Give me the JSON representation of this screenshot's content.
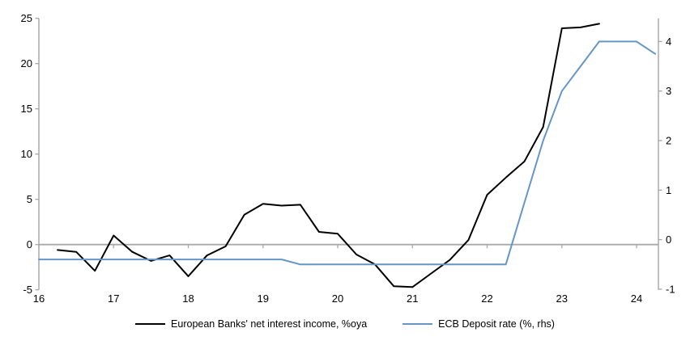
{
  "chart_data": {
    "type": "line",
    "title": "",
    "x_axis": {
      "labels": [
        "16",
        "17",
        "18",
        "19",
        "20",
        "21",
        "22",
        "23",
        "24"
      ],
      "tick_years": [
        16,
        17,
        18,
        19,
        20,
        21,
        22,
        23,
        24
      ],
      "range": [
        16,
        24.29
      ]
    },
    "left_axis": {
      "ticks": [
        -5,
        0,
        5,
        10,
        15,
        20,
        25
      ],
      "range": [
        -5,
        25
      ]
    },
    "right_axis": {
      "ticks": [
        -1,
        0,
        1,
        2,
        3,
        4
      ],
      "range": [
        -1.02,
        4.47
      ]
    },
    "grid": "zero-line-only",
    "legend_position": "bottom-center",
    "series": [
      {
        "name": "European Banks' net interest income, %oya",
        "color": "#000000",
        "axis": "left",
        "points": [
          [
            16.25,
            -0.6
          ],
          [
            16.5,
            -0.8
          ],
          [
            16.75,
            -2.9
          ],
          [
            17.0,
            1.0
          ],
          [
            17.25,
            -0.8
          ],
          [
            17.5,
            -1.8
          ],
          [
            17.75,
            -1.2
          ],
          [
            18.0,
            -3.5
          ],
          [
            18.25,
            -1.2
          ],
          [
            18.5,
            -0.2
          ],
          [
            18.75,
            3.3
          ],
          [
            19.0,
            4.5
          ],
          [
            19.25,
            4.3
          ],
          [
            19.5,
            4.4
          ],
          [
            19.75,
            1.4
          ],
          [
            20.0,
            1.2
          ],
          [
            20.25,
            -1.1
          ],
          [
            20.5,
            -2.2
          ],
          [
            20.75,
            -4.6
          ],
          [
            21.0,
            -4.7
          ],
          [
            21.25,
            -3.2
          ],
          [
            21.5,
            -1.7
          ],
          [
            21.75,
            0.5
          ],
          [
            22.0,
            5.5
          ],
          [
            22.25,
            7.4
          ],
          [
            22.5,
            9.2
          ],
          [
            22.75,
            13.0
          ],
          [
            23.0,
            23.9
          ],
          [
            23.25,
            24.0
          ],
          [
            23.5,
            24.4
          ]
        ]
      },
      {
        "name": "ECB Deposit rate (%, rhs)",
        "color": "#6496C8",
        "axis": "right",
        "points": [
          [
            16.0,
            -0.4
          ],
          [
            16.25,
            -0.4
          ],
          [
            16.5,
            -0.4
          ],
          [
            16.75,
            -0.4
          ],
          [
            17.0,
            -0.4
          ],
          [
            17.25,
            -0.4
          ],
          [
            17.5,
            -0.4
          ],
          [
            17.75,
            -0.4
          ],
          [
            18.0,
            -0.4
          ],
          [
            18.25,
            -0.4
          ],
          [
            18.5,
            -0.4
          ],
          [
            18.75,
            -0.4
          ],
          [
            19.0,
            -0.4
          ],
          [
            19.25,
            -0.4
          ],
          [
            19.5,
            -0.5
          ],
          [
            19.75,
            -0.5
          ],
          [
            20.0,
            -0.5
          ],
          [
            20.25,
            -0.5
          ],
          [
            20.5,
            -0.5
          ],
          [
            20.75,
            -0.5
          ],
          [
            21.0,
            -0.5
          ],
          [
            21.25,
            -0.5
          ],
          [
            21.5,
            -0.5
          ],
          [
            21.75,
            -0.5
          ],
          [
            22.0,
            -0.5
          ],
          [
            22.25,
            -0.5
          ],
          [
            22.5,
            0.75
          ],
          [
            22.75,
            2.0
          ],
          [
            23.0,
            3.0
          ],
          [
            23.25,
            3.5
          ],
          [
            23.5,
            4.0
          ],
          [
            23.75,
            4.0
          ],
          [
            24.0,
            4.0
          ],
          [
            24.25,
            3.75
          ]
        ]
      }
    ],
    "colors": {
      "axis": "#a6a6a6",
      "zero_line": "#a9a9a9",
      "text": "#000000"
    }
  }
}
